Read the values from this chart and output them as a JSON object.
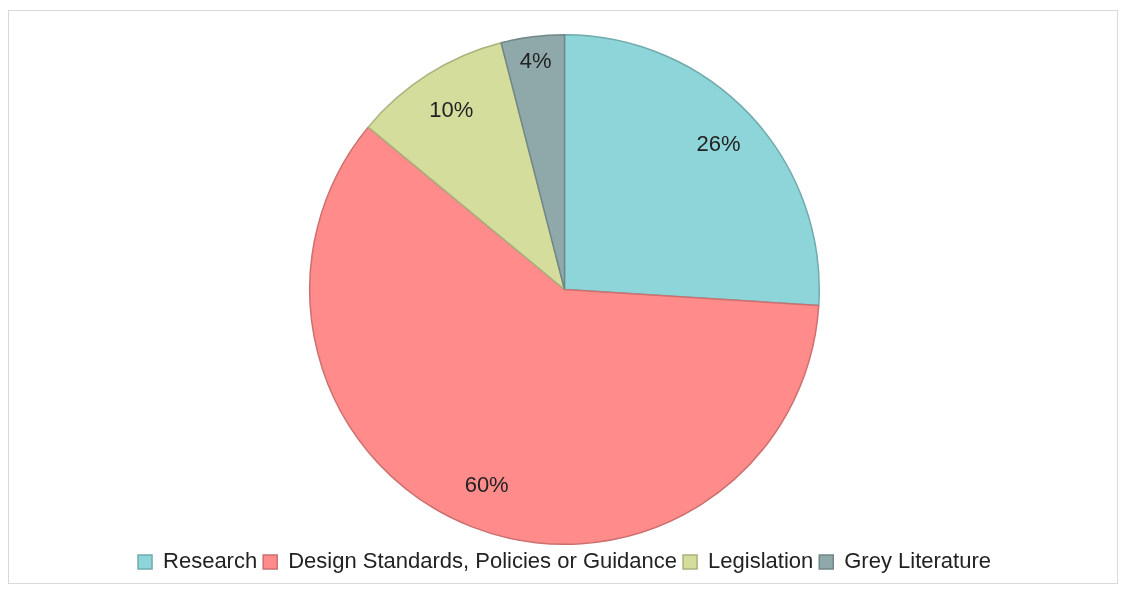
{
  "chart_data": {
    "type": "pie",
    "categories": [
      "Research",
      "Design Standards, Policies or Guidance",
      "Legislation",
      "Grey Literature"
    ],
    "values": [
      26,
      60,
      10,
      4
    ],
    "colors": [
      "#8dd5d8",
      "#ff8b8b",
      "#d4dd9c",
      "#8fa9aa"
    ],
    "value_labels": [
      "26%",
      "60%",
      "10%",
      "4%"
    ],
    "legend": "bottom"
  }
}
